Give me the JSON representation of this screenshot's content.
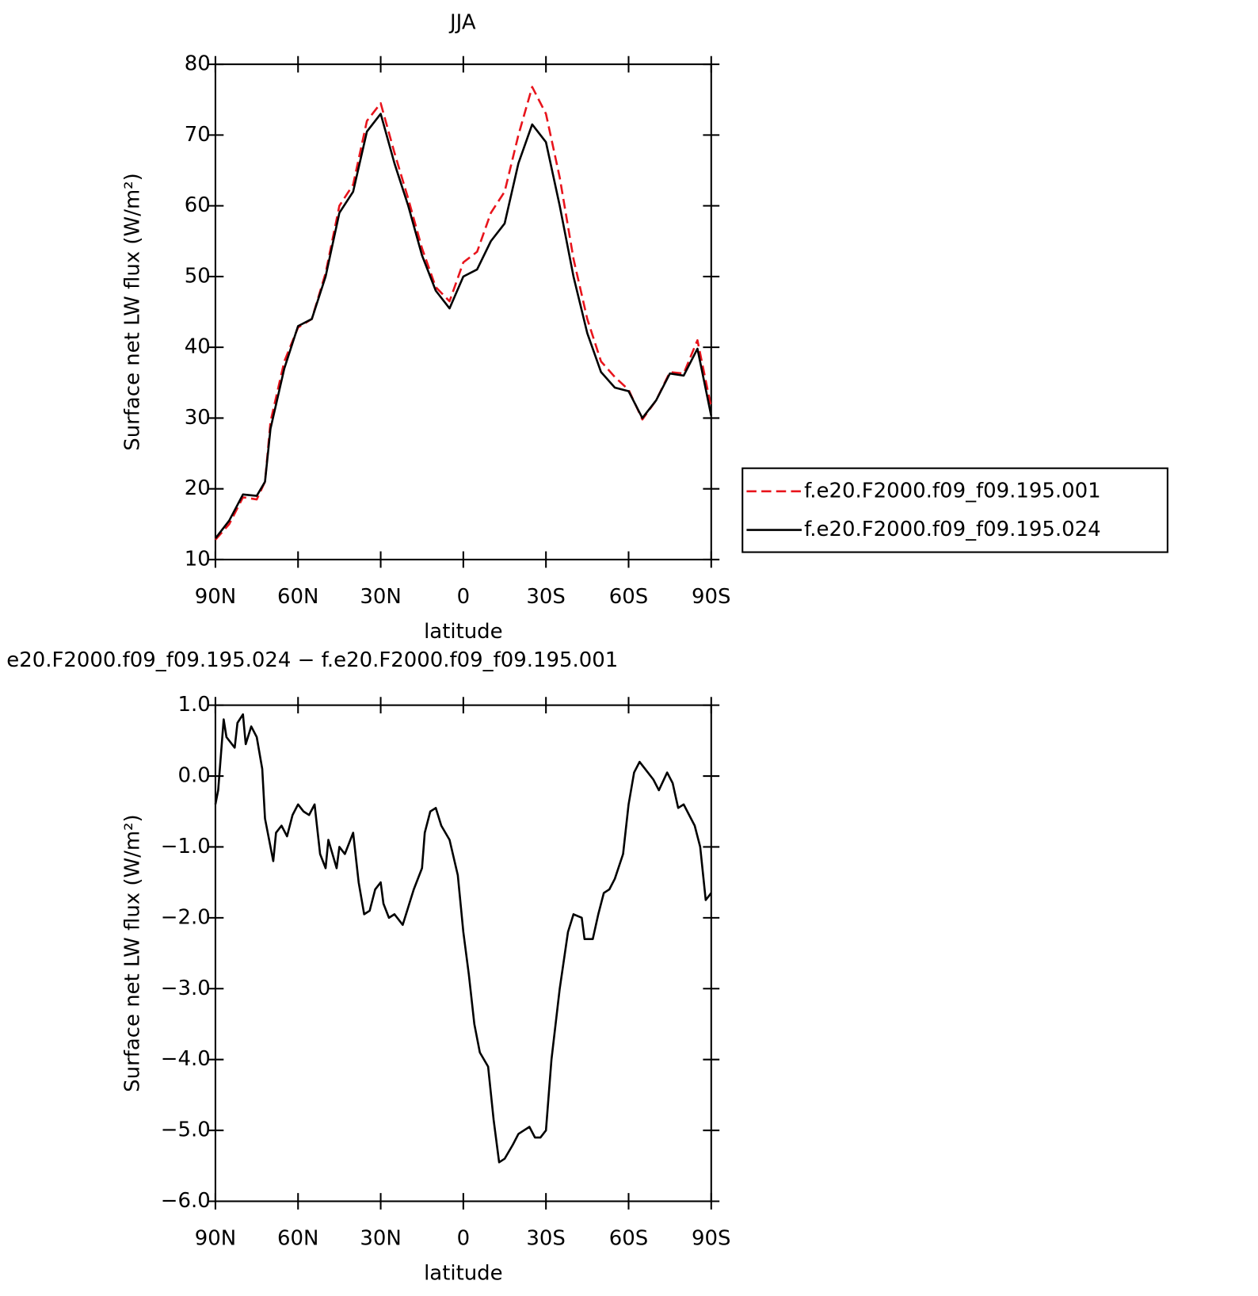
{
  "chart_data": [
    {
      "type": "line",
      "title": "JJA",
      "xlabel": "latitude",
      "ylabel": "Surface net LW flux (W/m²)",
      "x": [
        90,
        85,
        80,
        75,
        72,
        70,
        65,
        60,
        55,
        50,
        45,
        40,
        35,
        30,
        25,
        20,
        15,
        10,
        5,
        0,
        -5,
        -10,
        -15,
        -20,
        -25,
        -30,
        -35,
        -40,
        -45,
        -50,
        -55,
        -60,
        -65,
        -70,
        -75,
        -80,
        -85,
        -90
      ],
      "series": [
        {
          "name": "f.e20.F2000.f09_f09.195.001",
          "color": "#e8141c",
          "dashed": true,
          "values": [
            12.8,
            15,
            18.8,
            18.5,
            21,
            29.5,
            38,
            42.8,
            44,
            50.5,
            60,
            63,
            72,
            74.5,
            67.5,
            61,
            54,
            48.5,
            46.5,
            52,
            53.5,
            59,
            62,
            70,
            76.8,
            73,
            64,
            52.5,
            44,
            38,
            35.8,
            34,
            29.8,
            32.5,
            36.5,
            36.3,
            41,
            31.5
          ]
        },
        {
          "name": "f.e20.F2000.f09_f09.195.024",
          "color": "#000000",
          "dashed": false,
          "values": [
            13,
            15.5,
            19.2,
            19,
            21,
            28.5,
            37,
            43,
            44,
            50,
            59,
            62,
            70.5,
            73,
            66,
            60,
            53,
            48,
            45.5,
            50,
            51,
            55,
            57.5,
            66,
            71.5,
            69,
            60,
            50,
            42,
            36.5,
            34.3,
            33.8,
            30,
            32.5,
            36.3,
            36,
            39.8,
            30.3
          ]
        }
      ],
      "xlim": [
        90,
        -90
      ],
      "xticks": [
        {
          "value": 90,
          "label": "90N"
        },
        {
          "value": 60,
          "label": "60N"
        },
        {
          "value": 30,
          "label": "30N"
        },
        0,
        {
          "value": -30,
          "label": "30S"
        },
        {
          "value": -60,
          "label": "60S"
        },
        {
          "value": -90,
          "label": "90S"
        }
      ],
      "ylim": [
        10,
        80
      ],
      "yticks": [
        10,
        20,
        30,
        40,
        50,
        60,
        70,
        80
      ],
      "legend": "right"
    },
    {
      "type": "line",
      "title": "e20.F2000.f09_f09.195.024 − f.e20.F2000.f09_f09.195.001",
      "xlabel": "latitude",
      "ylabel": "Surface net LW flux (W/m²)",
      "x": [
        90,
        89,
        87,
        86,
        83,
        82,
        80,
        79,
        77,
        75,
        73,
        72,
        69,
        68,
        66,
        64,
        62,
        60,
        58,
        56,
        54,
        52,
        50,
        49,
        46,
        45,
        43,
        40,
        38,
        36,
        34,
        32,
        30,
        29,
        27,
        25,
        22,
        20,
        18,
        15,
        14,
        12,
        10,
        8,
        5,
        2,
        0,
        -2,
        -4,
        -6,
        -9,
        -11,
        -13,
        -15,
        -18,
        -20,
        -22,
        -24,
        -26,
        -28,
        -30,
        -32,
        -35,
        -38,
        -40,
        -43,
        -44,
        -47,
        -49,
        -51,
        -53,
        -55,
        -58,
        -60,
        -62,
        -64,
        -66,
        -69,
        -71,
        -74,
        -76,
        -78,
        -80,
        -82,
        -84,
        -86,
        -88,
        -90
      ],
      "values": [
        -0.4,
        -0.2,
        0.8,
        0.55,
        0.4,
        0.75,
        0.87,
        0.45,
        0.7,
        0.55,
        0.1,
        -0.6,
        -1.2,
        -0.8,
        -0.7,
        -0.85,
        -0.55,
        -0.4,
        -0.5,
        -0.55,
        -0.4,
        -1.1,
        -1.3,
        -0.9,
        -1.3,
        -1.0,
        -1.1,
        -0.8,
        -1.5,
        -1.95,
        -1.9,
        -1.6,
        -1.5,
        -1.8,
        -2.0,
        -1.95,
        -2.1,
        -1.85,
        -1.6,
        -1.3,
        -0.8,
        -0.5,
        -0.45,
        -0.7,
        -0.9,
        -1.4,
        -2.2,
        -2.8,
        -3.5,
        -3.9,
        -4.1,
        -4.85,
        -5.45,
        -5.4,
        -5.2,
        -5.05,
        -5.0,
        -4.95,
        -5.1,
        -5.1,
        -5.0,
        -4.0,
        -3.0,
        -2.2,
        -1.95,
        -2.0,
        -2.3,
        -2.3,
        -1.95,
        -1.65,
        -1.6,
        -1.45,
        -1.1,
        -0.4,
        0.05,
        0.2,
        0.1,
        -0.05,
        -0.2,
        0.05,
        -0.1,
        -0.45,
        -0.4,
        -0.55,
        -0.7,
        -1.0,
        -1.75,
        -1.65
      ],
      "color": "#000000",
      "xlim": [
        90,
        -90
      ],
      "xticks": [
        {
          "value": 90,
          "label": "90N"
        },
        {
          "value": 60,
          "label": "60N"
        },
        {
          "value": 30,
          "label": "30N"
        },
        0,
        {
          "value": -30,
          "label": "30S"
        },
        {
          "value": -60,
          "label": "60S"
        },
        {
          "value": -90,
          "label": "90S"
        }
      ],
      "ylim": [
        -6,
        1
      ],
      "yticks": [
        {
          "value": -6,
          "label": "−6.0"
        },
        {
          "value": -5,
          "label": "−5.0"
        },
        {
          "value": -4,
          "label": "−4.0"
        },
        {
          "value": -3,
          "label": "−3.0"
        },
        {
          "value": -2,
          "label": "−2.0"
        },
        {
          "value": -1,
          "label": "−1.0"
        },
        {
          "value": 0,
          "label": "0.0"
        },
        {
          "value": 1,
          "label": "1.0"
        }
      ]
    }
  ]
}
